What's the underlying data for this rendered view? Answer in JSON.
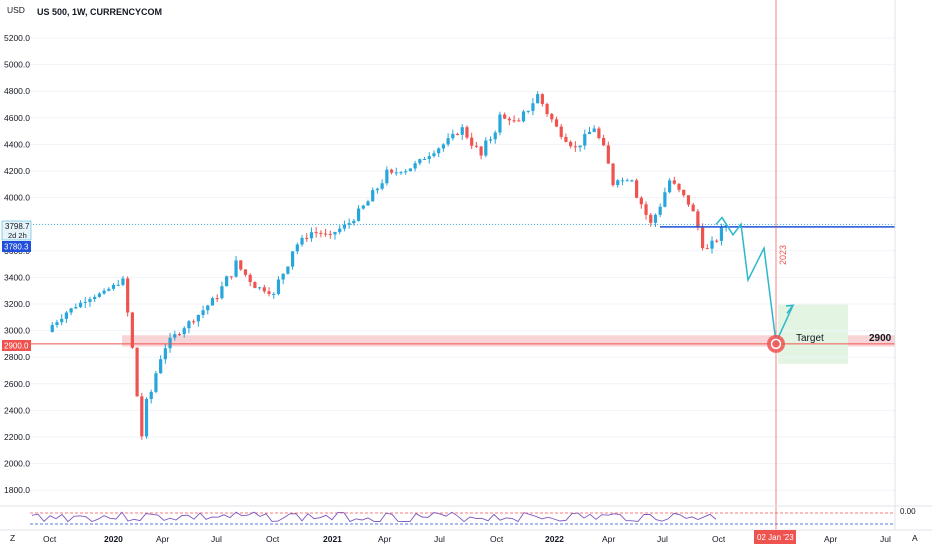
{
  "header": {
    "currency": "USD",
    "symbol_title": "US 500, 1W, CURRENCYCOM"
  },
  "price_tags": {
    "last_price": "3798.7",
    "countdown": "2d 2h",
    "blue_line_price": "3780.3",
    "red_line_price": "2900.0"
  },
  "annotations": {
    "target_label": "Target",
    "target_value": "2900",
    "year_marker": "2023",
    "date_tag": "02 Jan '23"
  },
  "toolbar": {
    "z_label": "Z",
    "a_label": "A"
  },
  "rsi": {
    "zero_label": "0.00"
  },
  "colors": {
    "up": "#26a6da",
    "down": "#ef5350",
    "support_zone": "#f7c5c8",
    "target_zone": "#e3f4e3",
    "blue_line": "#1f4fd8",
    "red_line": "#ef5350",
    "projection": "#2bb8cc",
    "rsi_line": "#7e57c2"
  },
  "chart_data": {
    "type": "candlestick",
    "title": "US 500, 1W, CURRENCYCOM",
    "ylabel": "USD",
    "ylim": [
      1650,
      5400
    ],
    "y_ticks": [
      5200,
      5000,
      4800,
      4600,
      4400,
      4200,
      4000,
      3800,
      3600,
      3400,
      3200,
      3000,
      2800,
      2600,
      2400,
      2200,
      2000,
      1800
    ],
    "x_labels": [
      "Oct",
      "2020",
      "Apr",
      "Jul",
      "Oct",
      "2021",
      "Apr",
      "Jul",
      "Oct",
      "2022",
      "Apr",
      "Jul",
      "Oct",
      "Apr",
      "Jul"
    ],
    "series": [
      {
        "name": "US 500",
        "points": [
          {
            "month": "2019-10",
            "close": 3010
          },
          {
            "month": "2019-11",
            "close": 3140
          },
          {
            "month": "2019-12",
            "close": 3230
          },
          {
            "month": "2020-01",
            "close": 3290
          },
          {
            "month": "2020-02",
            "close": 3380
          },
          {
            "month": "2020-03",
            "close": 2240
          },
          {
            "month": "2020-04",
            "close": 2840
          },
          {
            "month": "2020-05",
            "close": 3000
          },
          {
            "month": "2020-06",
            "close": 3120
          },
          {
            "month": "2020-07",
            "close": 3260
          },
          {
            "month": "2020-08",
            "close": 3500
          },
          {
            "month": "2020-09",
            "close": 3340
          },
          {
            "month": "2020-10",
            "close": 3270
          },
          {
            "month": "2020-11",
            "close": 3620
          },
          {
            "month": "2020-12",
            "close": 3740
          },
          {
            "month": "2021-01",
            "close": 3720
          },
          {
            "month": "2021-02",
            "close": 3810
          },
          {
            "month": "2021-03",
            "close": 3970
          },
          {
            "month": "2021-04",
            "close": 4180
          },
          {
            "month": "2021-05",
            "close": 4200
          },
          {
            "month": "2021-06",
            "close": 4300
          },
          {
            "month": "2021-07",
            "close": 4400
          },
          {
            "month": "2021-08",
            "close": 4520
          },
          {
            "month": "2021-09",
            "close": 4310
          },
          {
            "month": "2021-10",
            "close": 4600
          },
          {
            "month": "2021-11",
            "close": 4570
          },
          {
            "month": "2021-12",
            "close": 4770
          },
          {
            "month": "2022-01",
            "close": 4520
          },
          {
            "month": "2022-02",
            "close": 4370
          },
          {
            "month": "2022-03",
            "close": 4530
          },
          {
            "month": "2022-04",
            "close": 4130
          },
          {
            "month": "2022-05",
            "close": 4130
          },
          {
            "month": "2022-06",
            "close": 3790
          },
          {
            "month": "2022-07",
            "close": 4130
          },
          {
            "month": "2022-08",
            "close": 3960
          },
          {
            "month": "2022-09",
            "close": 3590
          },
          {
            "month": "2022-10",
            "close": 3798.7
          }
        ]
      }
    ],
    "horizontal_levels": [
      {
        "price": 3780.3,
        "color": "#1f4fd8"
      },
      {
        "price": 2900,
        "color": "#ef5350"
      }
    ],
    "support_zone": [
      2880,
      2965
    ],
    "projection_path": [
      {
        "month": "2022-10",
        "price": 3798.7
      },
      {
        "month": "2022-11",
        "price": 3700
      },
      {
        "month": "2022-12",
        "price": 3360
      },
      {
        "month": "2023-01",
        "price": 2900
      },
      {
        "month": "2023-01",
        "price": 3190
      }
    ],
    "target": {
      "price": 2900,
      "date": "02 Jan '23"
    }
  }
}
